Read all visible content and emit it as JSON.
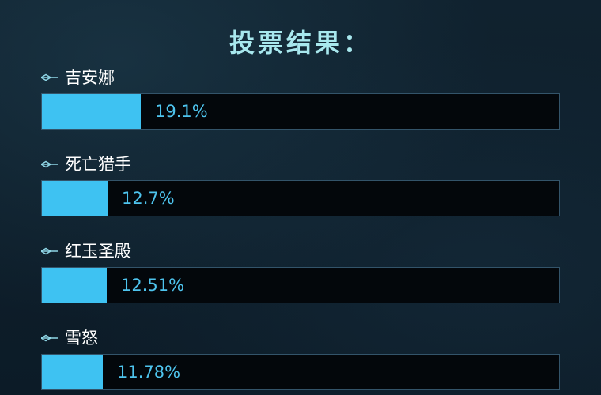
{
  "title": "投票结果：",
  "colors": {
    "background": "#0d1e2c",
    "title": "#a8e8ee",
    "bar_fill": "#3ec2f2",
    "bar_track": "#03070b",
    "value_text": "#4ec4ee"
  },
  "chart_data": {
    "type": "bar",
    "orientation": "horizontal",
    "title": "投票结果：",
    "categories": [
      "吉安娜",
      "死亡猎手",
      "红玉圣殿",
      "雪怒"
    ],
    "values": [
      19.1,
      12.7,
      12.51,
      11.78
    ],
    "value_labels": [
      "19.1%",
      "12.7%",
      "12.51%",
      "11.78%"
    ],
    "xlim": [
      0,
      100
    ],
    "grid": false
  }
}
